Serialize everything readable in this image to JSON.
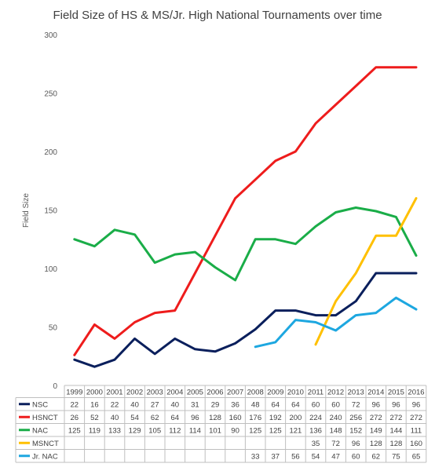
{
  "chart_data": {
    "type": "line",
    "title": "Field Size of HS & MS/Jr. High National Tournaments over time",
    "ylabel": "Field Size",
    "xlabel": "",
    "ylim": [
      0,
      300
    ],
    "yticks": [
      0,
      50,
      100,
      150,
      200,
      250,
      300
    ],
    "grid": false,
    "legend": "data-table",
    "categories": [
      "1999",
      "2000",
      "2001",
      "2002",
      "2003",
      "2004",
      "2005",
      "2006",
      "2007",
      "2008",
      "2009",
      "2010",
      "2011",
      "2012",
      "2013",
      "2014",
      "2015",
      "2016"
    ],
    "series": [
      {
        "name": "NSC",
        "color": "#0a1f5c",
        "values": [
          22,
          16,
          22,
          40,
          27,
          40,
          31,
          29,
          36,
          48,
          64,
          64,
          60,
          60,
          72,
          96,
          96,
          96
        ]
      },
      {
        "name": "HSNCT",
        "color": "#ee1c1c",
        "values": [
          26,
          52,
          40,
          54,
          62,
          64,
          96,
          128,
          160,
          176,
          192,
          200,
          224,
          240,
          256,
          272,
          272,
          272
        ]
      },
      {
        "name": "NAC",
        "color": "#1aad48",
        "values": [
          125,
          119,
          133,
          129,
          105,
          112,
          114,
          101,
          90,
          125,
          125,
          121,
          136,
          148,
          152,
          149,
          144,
          111
        ]
      },
      {
        "name": "MSNCT",
        "color": "#ffc000",
        "values": [
          null,
          null,
          null,
          null,
          null,
          null,
          null,
          null,
          null,
          null,
          null,
          null,
          35,
          72,
          96,
          128,
          128,
          160
        ]
      },
      {
        "name": "Jr. NAC",
        "color": "#1da7e0",
        "values": [
          null,
          null,
          null,
          null,
          null,
          null,
          null,
          null,
          null,
          33,
          37,
          56,
          54,
          47,
          60,
          62,
          75,
          65
        ]
      }
    ]
  }
}
